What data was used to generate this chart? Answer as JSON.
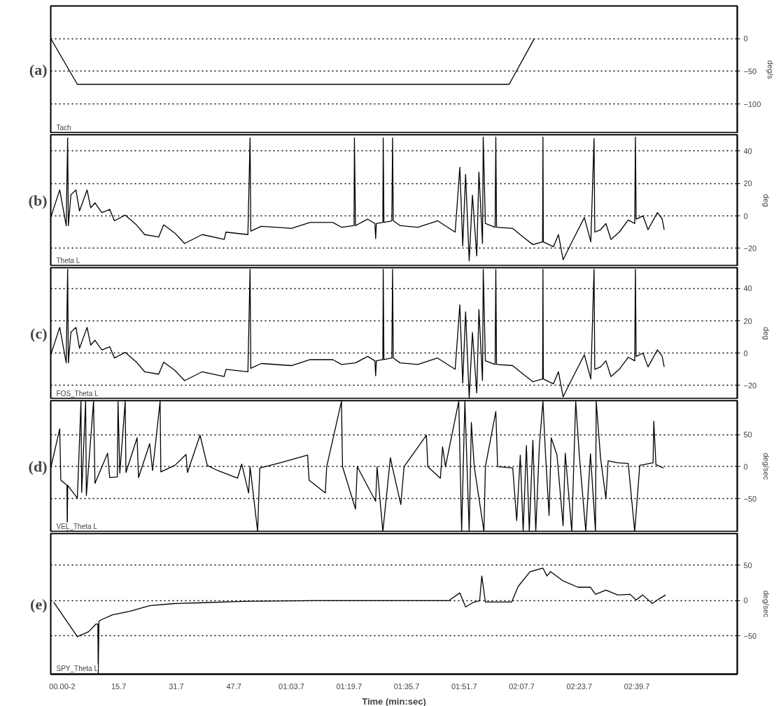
{
  "chart_data": [
    {
      "type": "line",
      "title": "(a)",
      "ylabel": "deg/s",
      "xlim": [
        -3.2,
        187.6
      ],
      "ylim": [
        -145,
        50
      ],
      "yticks": [
        0,
        -50,
        -100
      ],
      "grid": "y",
      "tick_labels": "y",
      "series": [
        {
          "name": "Tach",
          "color": "#000000",
          "x": [
            -3.2,
            4.2,
            124.2,
            131.2
          ],
          "values": [
            0,
            -70,
            -70,
            0
          ]
        }
      ]
    },
    {
      "type": "line",
      "title": "(b)",
      "ylabel": "deg",
      "xlim": [
        -3.2,
        187.6
      ],
      "ylim": [
        -31,
        50
      ],
      "yticks": [
        40,
        20,
        0,
        -20
      ],
      "grid": "y",
      "tick_labels": "y",
      "series": [
        {
          "name": "Theta L",
          "color": "#000000",
          "x": [
            -3.2,
            -0.7,
            1.1,
            1.5,
            1.7,
            2.4,
            3.8,
            4.8,
            6.9,
            7.9,
            9.1,
            11.0,
            13.2,
            14.5,
            17.5,
            20.6,
            22.9,
            26.8,
            28.2,
            31.3,
            34.0,
            38.9,
            45.0,
            45.5,
            51.6,
            52.2,
            52.4,
            55.3,
            63.7,
            68.9,
            75.2,
            77.6,
            81.1,
            81.2,
            81.5,
            84.9,
            86.9,
            87.1,
            87.3,
            89.1,
            89.2,
            89.4,
            91.6,
            91.8,
            92.0,
            93.9,
            98.8,
            104.3,
            109.2,
            110.5,
            111.3,
            112.1,
            113.1,
            114.0,
            115.2,
            115.8,
            116.8,
            117.0,
            117.6,
            120.3,
            120.5,
            120.7,
            125.2,
            128.1,
            130.8,
            133.5,
            133.6,
            133.7,
            136.5,
            137.9,
            139.2,
            142.0,
            145.1,
            146.9,
            147.8,
            148.0,
            149.6,
            151.1,
            152.5,
            154.8,
            157.3,
            159.1,
            159.3,
            159.5,
            161.4,
            162.8,
            165.4,
            166.7,
            167.3
          ],
          "values": [
            -1,
            16,
            -6,
            48,
            -6,
            13,
            16,
            3,
            16,
            5,
            8,
            2,
            4,
            -3,
            0.5,
            -5.5,
            -11.5,
            -13,
            -5.5,
            -10.6,
            -17,
            -11.5,
            -14.5,
            -10,
            -11.5,
            48,
            -9.4,
            -6.4,
            -7.7,
            -4,
            -4,
            -7,
            -6,
            48,
            -6,
            -2,
            -4.7,
            -14,
            -4.7,
            -4,
            48,
            -4,
            -3,
            48,
            -3,
            -6,
            -7,
            -3,
            -10,
            30,
            -18.5,
            25.6,
            -27.7,
            12.8,
            -24.6,
            27,
            -17,
            48.5,
            -4.7,
            -7,
            48.5,
            -7,
            -7.7,
            -13,
            -17.7,
            -16,
            48.5,
            -16,
            -19,
            -11.5,
            -27,
            -14.5,
            -1,
            -16,
            47.7,
            -10,
            -8.5,
            -4.7,
            -14.5,
            -10,
            -2.5,
            -4.7,
            48.5,
            -2,
            0,
            -8.5,
            2,
            -1.7,
            -8.5
          ]
        }
      ]
    },
    {
      "type": "line",
      "title": "(c)",
      "ylabel": "deg",
      "xlim": [
        -3.2,
        187.6
      ],
      "ylim": [
        -28.5,
        53
      ],
      "yticks": [
        40,
        20,
        0,
        -20
      ],
      "grid": "y",
      "tick_labels": "y",
      "series": [
        {
          "name": "FOS_Theta L",
          "color": "#000000",
          "x": [
            -3.2,
            -0.7,
            1.1,
            1.5,
            1.7,
            2.4,
            3.8,
            4.8,
            6.9,
            7.9,
            9.1,
            11.0,
            13.2,
            14.5,
            17.5,
            20.6,
            22.9,
            26.8,
            28.2,
            31.3,
            34.0,
            38.9,
            45.0,
            45.5,
            51.6,
            52.2,
            52.4,
            55.3,
            63.7,
            68.9,
            75.2,
            77.6,
            81.5,
            84.9,
            86.9,
            87.1,
            87.3,
            89.1,
            89.2,
            89.4,
            91.6,
            91.8,
            92.0,
            93.9,
            98.8,
            104.3,
            109.2,
            110.5,
            111.3,
            112.1,
            113.1,
            114.0,
            115.2,
            115.8,
            116.8,
            117.0,
            117.6,
            120.3,
            120.5,
            120.7,
            125.2,
            128.1,
            130.8,
            133.5,
            133.6,
            133.7,
            136.5,
            137.9,
            139.2,
            142.0,
            145.1,
            146.9,
            147.8,
            148.0,
            149.6,
            151.1,
            152.5,
            154.8,
            157.3,
            159.1,
            159.3,
            159.5,
            161.4,
            162.8,
            165.4,
            166.7,
            167.3
          ],
          "values": [
            -1,
            16,
            -6,
            52,
            -6,
            13,
            16,
            3,
            16,
            5,
            8,
            2,
            4,
            -3,
            0.5,
            -5.5,
            -11.5,
            -13,
            -5.5,
            -10.6,
            -17,
            -11.5,
            -14.5,
            -10,
            -11.5,
            52,
            -9.4,
            -6.4,
            -7.7,
            -4,
            -4,
            -7,
            -6,
            -2,
            -4.7,
            -14,
            -4.7,
            -4,
            52,
            -4,
            -3,
            52,
            -3,
            -6,
            -7,
            -3,
            -10,
            30,
            -18.5,
            25.6,
            -27.7,
            12.8,
            -24.6,
            27,
            -17,
            52,
            -4.7,
            -7,
            52,
            -7,
            -7.7,
            -13,
            -17.7,
            -16,
            52,
            -16,
            -19,
            -11.5,
            -27,
            -14.5,
            -1,
            -16,
            52,
            -10,
            -8.5,
            -4.7,
            -14.5,
            -10,
            -2.5,
            -4.7,
            52,
            -2,
            0,
            -8.5,
            2,
            -1.7,
            -8.5
          ]
        }
      ]
    },
    {
      "type": "line",
      "title": "(d)",
      "ylabel": "deg/sec",
      "xlim": [
        -3.2,
        187.6
      ],
      "ylim": [
        -102,
        103
      ],
      "yticks": [
        50,
        0,
        -50
      ],
      "grid": "y",
      "tick_labels": "y",
      "series": [
        {
          "name": "VEL_Theta L",
          "color": "#000000",
          "x": [
            -3.2,
            -0.7,
            -0.4,
            1.3,
            1.4,
            1.5,
            4.2,
            5.2,
            5.4,
            6.5,
            6.7,
            8.7,
            9.1,
            12.6,
            13.2,
            15.3,
            15.5,
            16.0,
            17.5,
            17.7,
            20.8,
            21.2,
            24.3,
            25.1,
            27.2,
            27.4,
            31.3,
            34.4,
            34.8,
            38.3,
            40.3,
            43.2,
            48.7,
            49.9,
            51.8,
            52.2,
            54.3,
            54.9,
            60.6,
            68.2,
            68.6,
            73.1,
            73.5,
            77.6,
            77.9,
            81.5,
            82.0,
            87.1,
            87.5,
            89.1,
            91.2,
            91.8,
            94.1,
            95.0,
            101.2,
            101.6,
            105.1,
            105.7,
            106.5,
            110.2,
            111.0,
            111.9,
            113.1,
            113.7,
            114.5,
            117.2,
            117.6,
            120.5,
            121.0,
            125.2,
            126.3,
            127.3,
            128.1,
            129.0,
            129.8,
            130.8,
            131.6,
            132.6,
            133.6,
            134.3,
            135.3,
            135.9,
            137.5,
            139.2,
            139.8,
            141.6,
            142.7,
            143.7,
            145.5,
            146.8,
            148.2,
            148.4,
            149.6,
            151.1,
            151.7,
            154.4,
            157.3,
            159.1,
            160.5,
            164.2,
            164.4,
            165.0,
            167.1
          ],
          "values": [
            -2,
            59,
            -21,
            -29,
            -101,
            -29,
            -49,
            102,
            -40,
            102,
            -45,
            102,
            -26,
            21,
            -17,
            -16,
            102,
            -10,
            102,
            -9,
            45,
            -17,
            36,
            -6,
            102,
            -8,
            2,
            19,
            -9,
            49,
            2,
            -6,
            -18,
            4,
            -41,
            0,
            -101,
            -2,
            6,
            18,
            -21,
            -41,
            0,
            102,
            0,
            -66,
            0,
            -54,
            0,
            -101,
            14,
            -2,
            -59,
            0,
            49,
            0,
            -18,
            31,
            0,
            102,
            -101,
            102,
            -101,
            69,
            0,
            -101,
            0,
            86,
            0,
            -2,
            -84,
            18,
            -101,
            33,
            -101,
            41,
            -101,
            33,
            102,
            20,
            -76,
            45,
            18,
            -92,
            21,
            -101,
            102,
            18,
            -101,
            20,
            -101,
            102,
            14,
            -50,
            9,
            6,
            5,
            -101,
            2,
            6,
            71,
            3,
            -2
          ]
        }
      ]
    },
    {
      "type": "line",
      "title": "(e)",
      "ylabel": "deg/sec",
      "xlabel": "Time (min:sec)",
      "xlim": [
        -3.2,
        187.6
      ],
      "ylim": [
        -104,
        95
      ],
      "yticks": [
        50,
        0,
        -50
      ],
      "grid": "y",
      "xticks": [
        {
          "value": 0,
          "label": "00.00-2"
        },
        15.7,
        31.7,
        47.7,
        {
          "value": 63.7,
          "label": "01:03.7"
        },
        {
          "value": 79.7,
          "label": "01:19.7"
        },
        {
          "value": 95.7,
          "label": "01:35.7"
        },
        {
          "value": 111.7,
          "label": "01:51.7"
        },
        {
          "value": 127.7,
          "label": "02:07.7"
        },
        {
          "value": 143.7,
          "label": "02:23.7"
        },
        {
          "value": 159.7,
          "label": "02:39.7"
        }
      ],
      "series": [
        {
          "name": "SPY_Theta L",
          "color": "#000000",
          "x": [
            -2.4,
            4.2,
            7.3,
            9.4,
            9.9,
            10.0,
            10.2,
            10.4,
            14.0,
            18.8,
            24.3,
            31.3,
            38.3,
            50.8,
            70.3,
            89.8,
            107.4,
            110.5,
            112.1,
            114.0,
            116.0,
            116.6,
            117.6,
            124.9,
            126.7,
            130.0,
            133.6,
            134.7,
            135.7,
            139.2,
            143.3,
            146.8,
            148.2,
            151.1,
            154.4,
            157.8,
            159.5,
            161.3,
            164.0,
            165.7,
            167.7
          ],
          "values": [
            -2,
            -51,
            -44,
            -33,
            -33,
            -103,
            -30,
            -28,
            -20,
            -15,
            -7,
            -4,
            -3,
            -1,
            0,
            0,
            0,
            11,
            -9,
            -3,
            0,
            35,
            -2,
            -2,
            20,
            41,
            46,
            35,
            41,
            28,
            19,
            19,
            9,
            15,
            8,
            9,
            1,
            8,
            -4,
            2,
            8
          ]
        }
      ]
    }
  ]
}
